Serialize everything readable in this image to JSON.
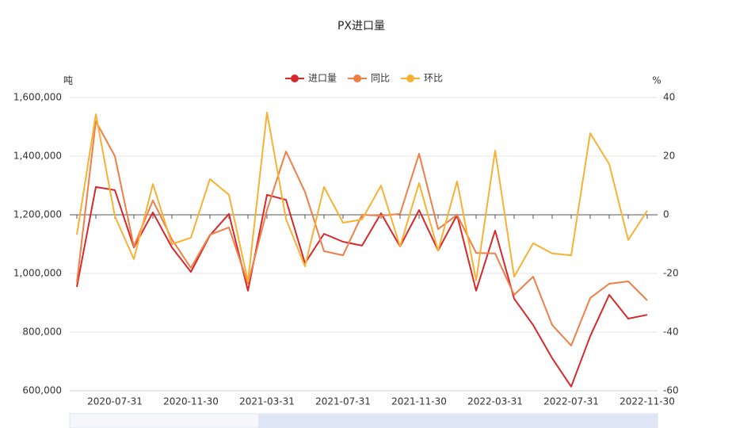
{
  "chart_data": {
    "type": "line",
    "title": "PX进口量",
    "y_label": "吨",
    "y2_label": "%",
    "categories": [
      null,
      null,
      "2020-07-31",
      null,
      null,
      null,
      "2020-11-30",
      null,
      null,
      null,
      "2021-03-31",
      null,
      null,
      null,
      "2021-07-31",
      null,
      null,
      null,
      "2021-11-30",
      null,
      null,
      null,
      "2022-03-31",
      null,
      null,
      null,
      "2022-07-31",
      null,
      null,
      null,
      "2022-11-30"
    ],
    "series": [
      {
        "name": "进口量",
        "color": "#d9282b",
        "values": [
          954000,
          1295000,
          1284000,
          1089000,
          1208000,
          1089000,
          1005000,
          1130000,
          1203000,
          941000,
          1268000,
          1251000,
          1035000,
          1135000,
          1108000,
          1095000,
          1205000,
          1092000,
          1216000,
          1078000,
          1200000,
          941000,
          1146000,
          914000,
          824000,
          711000,
          614000,
          786000,
          927000,
          846000,
          859000
        ]
      },
      {
        "name": "同比",
        "color": "#f07e46",
        "axis": "y2",
        "values": [
          -23.2,
          31.9,
          20.0,
          -10.8,
          4.9,
          -8.4,
          -18.1,
          -6.8,
          -4.3,
          -23.5,
          1.6,
          21.6,
          7.8,
          -12.4,
          -13.8,
          0,
          -0.3,
          0.3,
          20.8,
          -4.9,
          0,
          -13,
          -13.2,
          -27.3,
          -21.1,
          -37.6,
          -44.6,
          -28.4,
          -23.5,
          -22.7,
          -29.2
        ]
      },
      {
        "name": "环比",
        "color": "#f8b133",
        "axis": "y2",
        "values": [
          -6.8,
          34.3,
          -0.5,
          -15.1,
          10.5,
          -10,
          -7.8,
          12.2,
          6.8,
          -22.7,
          34.9,
          -1.4,
          -17.6,
          9.5,
          -2.7,
          -1.6,
          10,
          -10.8,
          10.8,
          -12.2,
          11.4,
          -22.4,
          21.9,
          -21.1,
          -9.7,
          -13.2,
          -13.8,
          27.8,
          17.3,
          -8.6,
          1.4
        ]
      }
    ],
    "ylim": [
      600000,
      1600000
    ],
    "yticks": [
      {
        "value": 600000,
        "label": "600,000"
      },
      {
        "value": 800000,
        "label": "800,000"
      },
      {
        "value": 1000000,
        "label": "1,000,000"
      },
      {
        "value": 1200000,
        "label": "1,200,000"
      },
      {
        "value": 1400000,
        "label": "1,400,000"
      },
      {
        "value": 1600000,
        "label": "1,600,000"
      }
    ],
    "y2lim": [
      -60,
      40
    ],
    "y2ticks": [
      -60,
      -40,
      -20,
      0,
      20,
      40
    ],
    "grid": true
  }
}
